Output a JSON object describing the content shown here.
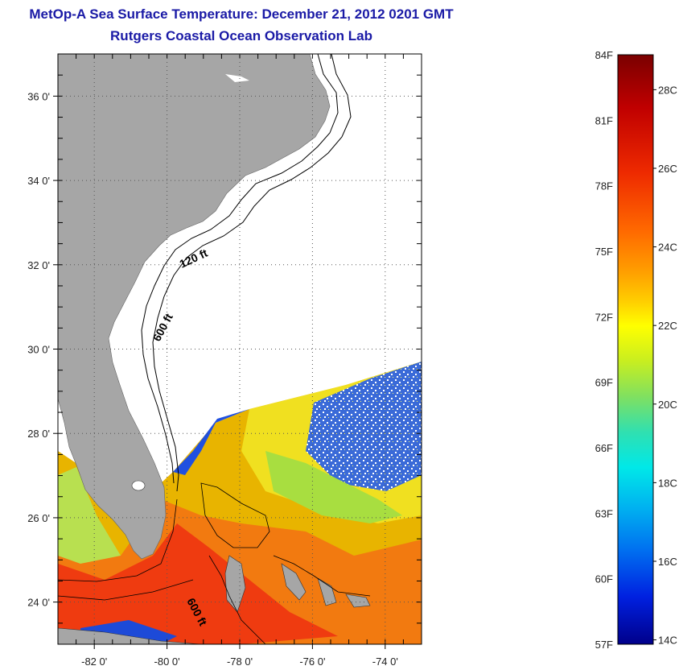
{
  "header": {
    "title": "MetOp-A Sea Surface Temperature:  December 21, 2012 0201 GMT",
    "subtitle": "Rutgers Coastal Ocean Observation Lab"
  },
  "map": {
    "lon_range": [
      -83,
      -73
    ],
    "lat_range": [
      23,
      37
    ],
    "lon_ticks": [
      {
        "value": -82,
        "label": "-82 0'"
      },
      {
        "value": -80,
        "label": "-80 0'"
      },
      {
        "value": -78,
        "label": "-78 0'"
      },
      {
        "value": -76,
        "label": "-76 0'"
      },
      {
        "value": -74,
        "label": "-74 0'"
      }
    ],
    "lat_ticks": [
      {
        "value": 24,
        "label": "24 0'"
      },
      {
        "value": 26,
        "label": "26 0'"
      },
      {
        "value": 28,
        "label": "28 0'"
      },
      {
        "value": 30,
        "label": "30 0'"
      },
      {
        "value": 32,
        "label": "32 0'"
      },
      {
        "value": 34,
        "label": "34 0'"
      },
      {
        "value": 36,
        "label": "36 0'"
      }
    ],
    "grid": "dotted",
    "contours": [
      {
        "label": "120 ft"
      },
      {
        "label": "600 ft"
      },
      {
        "label": "600 ft"
      }
    ],
    "colors": {
      "land": "#a6a6a6",
      "contour": "#000000"
    }
  },
  "colorbar": {
    "min_f": 57,
    "max_f": 84,
    "fahrenheit_labels": [
      "84F",
      "81F",
      "78F",
      "75F",
      "72F",
      "69F",
      "66F",
      "63F",
      "60F",
      "57F"
    ],
    "celsius_labels": [
      "28C",
      "26C",
      "24C",
      "22C",
      "20C",
      "18C",
      "16C",
      "14C"
    ]
  }
}
